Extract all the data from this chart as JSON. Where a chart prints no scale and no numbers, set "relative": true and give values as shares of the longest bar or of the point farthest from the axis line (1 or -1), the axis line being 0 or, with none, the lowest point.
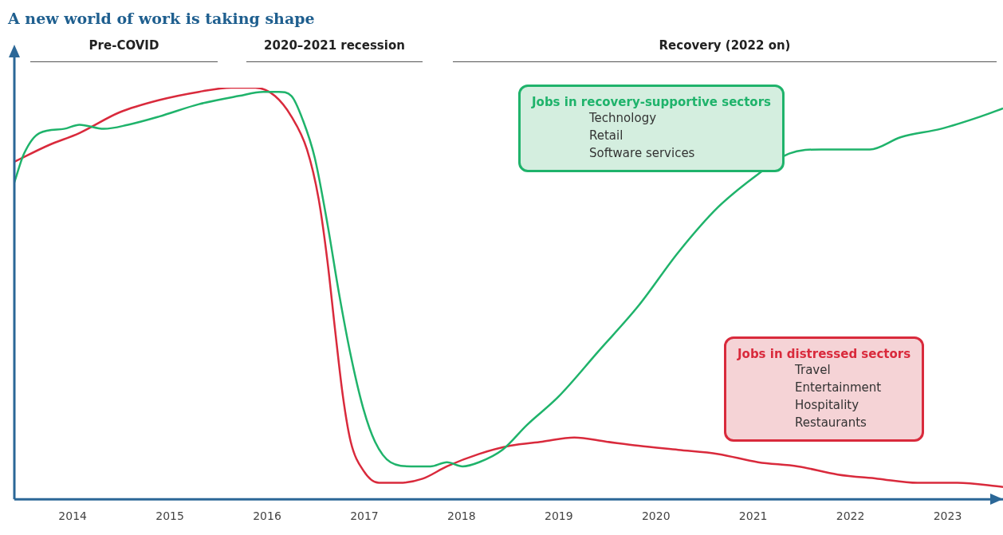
{
  "chart_data": {
    "type": "line",
    "title": "A new world of work is taking shape",
    "relative": true,
    "xlim": [
      2013.4,
      2023.57
    ],
    "xticks": [
      2014,
      2015,
      2016,
      2017,
      2018,
      2019,
      2020,
      2021,
      2022,
      2023
    ],
    "grid": false,
    "marker": "none",
    "line_style": "solid",
    "annotations": [
      "Pre-COVID",
      "2020–2021 recession",
      "Recovery (2022 on)",
      "Technology",
      "Retail",
      "Software services",
      "Travel",
      "Entertainment",
      "Hospitality",
      "Restaurants"
    ],
    "series": [
      {
        "name": "Jobs in recovery-supportive sectors",
        "color": "#1fb36b",
        "x": [
          2013.4,
          2013.5,
          2013.66,
          2013.91,
          2014.07,
          2014.32,
          2014.57,
          2014.89,
          2015.3,
          2015.71,
          2015.96,
          2016.12,
          2016.25,
          2016.37,
          2016.49,
          2016.62,
          2016.74,
          2016.86,
          2016.99,
          2017.11,
          2017.27,
          2017.48,
          2017.68,
          2017.85,
          2018.01,
          2018.18,
          2018.42,
          2018.67,
          2019.0,
          2019.41,
          2019.82,
          2020.23,
          2020.64,
          2021.05,
          2021.37,
          2021.7,
          2021.95,
          2022.2,
          2022.52,
          2022.93,
          2023.34,
          2023.57
        ],
        "values": [
          0.77,
          0.84,
          0.89,
          0.9,
          0.91,
          0.9,
          0.91,
          0.93,
          0.96,
          0.98,
          0.99,
          0.99,
          0.98,
          0.92,
          0.83,
          0.67,
          0.5,
          0.35,
          0.22,
          0.14,
          0.09,
          0.08,
          0.08,
          0.09,
          0.08,
          0.09,
          0.12,
          0.18,
          0.25,
          0.36,
          0.47,
          0.6,
          0.71,
          0.79,
          0.84,
          0.85,
          0.85,
          0.85,
          0.88,
          0.9,
          0.93,
          0.95
        ]
      },
      {
        "name": "Jobs in distressed sectors",
        "color": "#d92a3c",
        "x": [
          2013.4,
          2013.75,
          2014.07,
          2014.48,
          2014.89,
          2015.3,
          2015.63,
          2015.88,
          2016.08,
          2016.25,
          2016.41,
          2016.53,
          2016.62,
          2016.7,
          2016.78,
          2016.86,
          2016.99,
          2017.15,
          2017.36,
          2017.6,
          2017.85,
          2018.18,
          2018.5,
          2018.83,
          2019.16,
          2019.49,
          2019.82,
          2020.23,
          2020.64,
          2021.05,
          2021.46,
          2021.87,
          2022.28,
          2022.69,
          2023.1,
          2023.57
        ],
        "values": [
          0.82,
          0.86,
          0.89,
          0.94,
          0.97,
          0.99,
          1.0,
          1.0,
          0.98,
          0.93,
          0.85,
          0.73,
          0.58,
          0.41,
          0.25,
          0.14,
          0.07,
          0.04,
          0.04,
          0.05,
          0.08,
          0.11,
          0.13,
          0.14,
          0.15,
          0.14,
          0.13,
          0.12,
          0.11,
          0.09,
          0.08,
          0.06,
          0.05,
          0.04,
          0.04,
          0.03
        ]
      }
    ]
  }
}
